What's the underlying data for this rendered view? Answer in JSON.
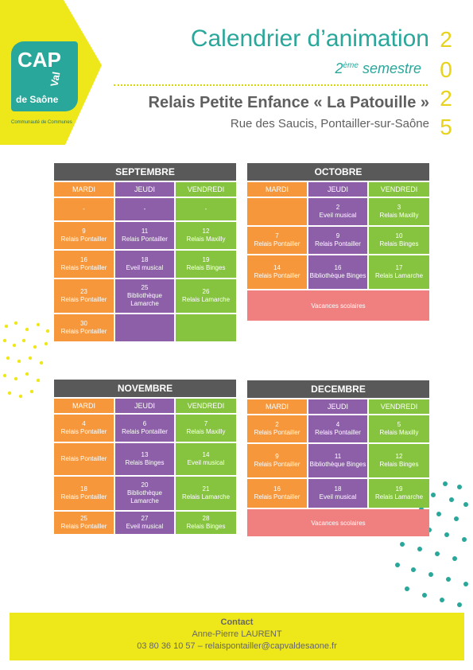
{
  "colors": {
    "accent": "#2aa79b",
    "yellow": "#eee81a",
    "mardi": "#f5973a",
    "jeudi": "#8c5fa8",
    "vendredi": "#86c440",
    "holiday": "#f08080",
    "month_header": "#595959"
  },
  "logo": {
    "line1": "CAP",
    "line2": "Val",
    "line3": "de Saône",
    "caption": "Communauté de Communes"
  },
  "header": {
    "title": "Calendrier d’animation",
    "semester_num": "2",
    "semester_sup": "ème",
    "semester_word": "semestre",
    "year_digits": [
      "2",
      "0",
      "2",
      "5"
    ],
    "relais": "Relais Petite Enfance « La Patouille »",
    "address": "Rue des Saucis, Pontailler-sur-Saône"
  },
  "days": [
    "MARDI",
    "JEUDI",
    "VENDREDI"
  ],
  "months": [
    {
      "name": "SEPTEMBRE",
      "rows": [
        [
          [
            "-",
            ""
          ],
          [
            "-",
            ""
          ],
          [
            "-",
            ""
          ]
        ],
        [
          [
            "9",
            "Relais Pontailler"
          ],
          [
            "11",
            "Relais Pontailler"
          ],
          [
            "12",
            "Relais Maxilly"
          ]
        ],
        [
          [
            "16",
            "Relais Pontailler"
          ],
          [
            "18",
            "Eveil musical"
          ],
          [
            "19",
            "Relais Binges"
          ]
        ],
        [
          [
            "23",
            "Relais Pontailler"
          ],
          [
            "25",
            "Bibliothèque Lamarche"
          ],
          [
            "26",
            "Relais Lamarche"
          ]
        ],
        [
          [
            "30",
            "Relais Pontailler"
          ],
          [
            "",
            ""
          ],
          [
            "",
            ""
          ]
        ]
      ],
      "holiday": ""
    },
    {
      "name": "OCTOBRE",
      "rows": [
        [
          [
            "",
            ""
          ],
          [
            "2",
            "Eveil musical"
          ],
          [
            "3",
            "Relais Maxilly"
          ]
        ],
        [
          [
            "7",
            "Relais Pontailler"
          ],
          [
            "9",
            "Relais Pontailler"
          ],
          [
            "10",
            "Relais Binges"
          ]
        ],
        [
          [
            "14",
            "Relais Pontailler"
          ],
          [
            "16",
            "Bibliothèque Binges"
          ],
          [
            "17",
            "Relais Lamarche"
          ]
        ]
      ],
      "holiday": "Vacances scolaires"
    },
    {
      "name": "NOVEMBRE",
      "rows": [
        [
          [
            "4",
            "Relais Pontailler"
          ],
          [
            "6",
            "Relais Pontailler"
          ],
          [
            "7",
            "Relais Maxilly"
          ]
        ],
        [
          [
            "",
            "Relais Pontailler"
          ],
          [
            "13",
            "Relais Binges"
          ],
          [
            "14",
            "Eveil musical"
          ]
        ],
        [
          [
            "18",
            "Relais Pontailler"
          ],
          [
            "20",
            "Bibliothèque Lamarche"
          ],
          [
            "21",
            "Relais Lamarche"
          ]
        ],
        [
          [
            "25",
            "Relais Pontailler"
          ],
          [
            "27",
            "Eveil musical"
          ],
          [
            "28",
            "Relais Binges"
          ]
        ]
      ],
      "holiday": ""
    },
    {
      "name": "DECEMBRE",
      "rows": [
        [
          [
            "2",
            "Relais Pontailler"
          ],
          [
            "4",
            "Relais Pontailler"
          ],
          [
            "5",
            "Relais Maxilly"
          ]
        ],
        [
          [
            "9",
            "Relais Pontailler"
          ],
          [
            "11",
            "Bibliothèque Binges"
          ],
          [
            "12",
            "Relais Binges"
          ]
        ],
        [
          [
            "16",
            "Relais Pontailler"
          ],
          [
            "18",
            "Eveil musical"
          ],
          [
            "19",
            "Relais Lamarche"
          ]
        ]
      ],
      "holiday": "Vacances scolaires"
    }
  ],
  "contact": {
    "label": "Contact",
    "name": "Anne-Pierre LAURENT",
    "details": "03 80 36 10 57 – relaispontailler@capvaldesaone.fr"
  }
}
